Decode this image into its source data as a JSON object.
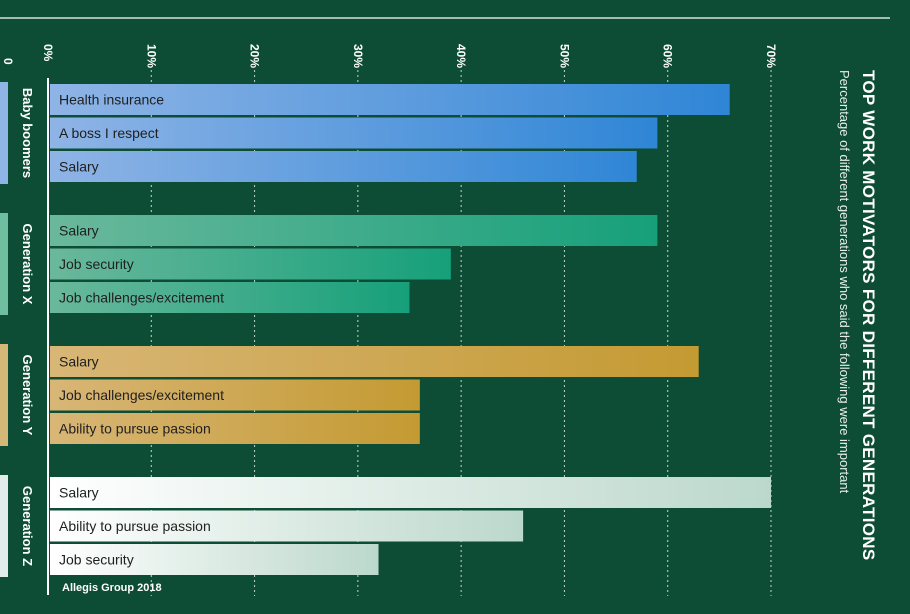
{
  "colors": {
    "background": "#0d4d36",
    "baby_boomers": "#2f86d6",
    "generation_x": "#16a07a",
    "generation_y": "#c49a32",
    "generation_z": "#bcd8cc"
  },
  "chart_data": {
    "type": "bar",
    "orientation": "horizontal",
    "title": "TOP WORK MOTIVATORS FOR DIFFERENT GENERATIONS",
    "subtitle": "Percentage of different generations who said the following were important",
    "source": "Allegis Group 2018",
    "xlim": [
      0,
      70
    ],
    "x_ticks": [
      "0%",
      "10%",
      "20%",
      "30%",
      "40%",
      "50%",
      "60%",
      "70%"
    ],
    "grid": true,
    "stray_label": "0",
    "groups": [
      {
        "name": "Baby boomers",
        "bars": [
          {
            "label": "Health insurance",
            "value": 66
          },
          {
            "label": "A boss I respect",
            "value": 59
          },
          {
            "label": "Salary",
            "value": 57
          }
        ]
      },
      {
        "name": "Generation X",
        "bars": [
          {
            "label": "Salary",
            "value": 59
          },
          {
            "label": "Job security",
            "value": 39
          },
          {
            "label": "Job challenges/excitement",
            "value": 35
          }
        ]
      },
      {
        "name": "Generation Y",
        "bars": [
          {
            "label": "Salary",
            "value": 63
          },
          {
            "label": "Job challenges/excitement",
            "value": 36
          },
          {
            "label": "Ability to pursue passion",
            "value": 36
          }
        ]
      },
      {
        "name": "Generation Z",
        "bars": [
          {
            "label": "Salary",
            "value": 70
          },
          {
            "label": "Ability to pursue passion",
            "value": 46
          },
          {
            "label": "Job security",
            "value": 32
          }
        ]
      }
    ]
  }
}
